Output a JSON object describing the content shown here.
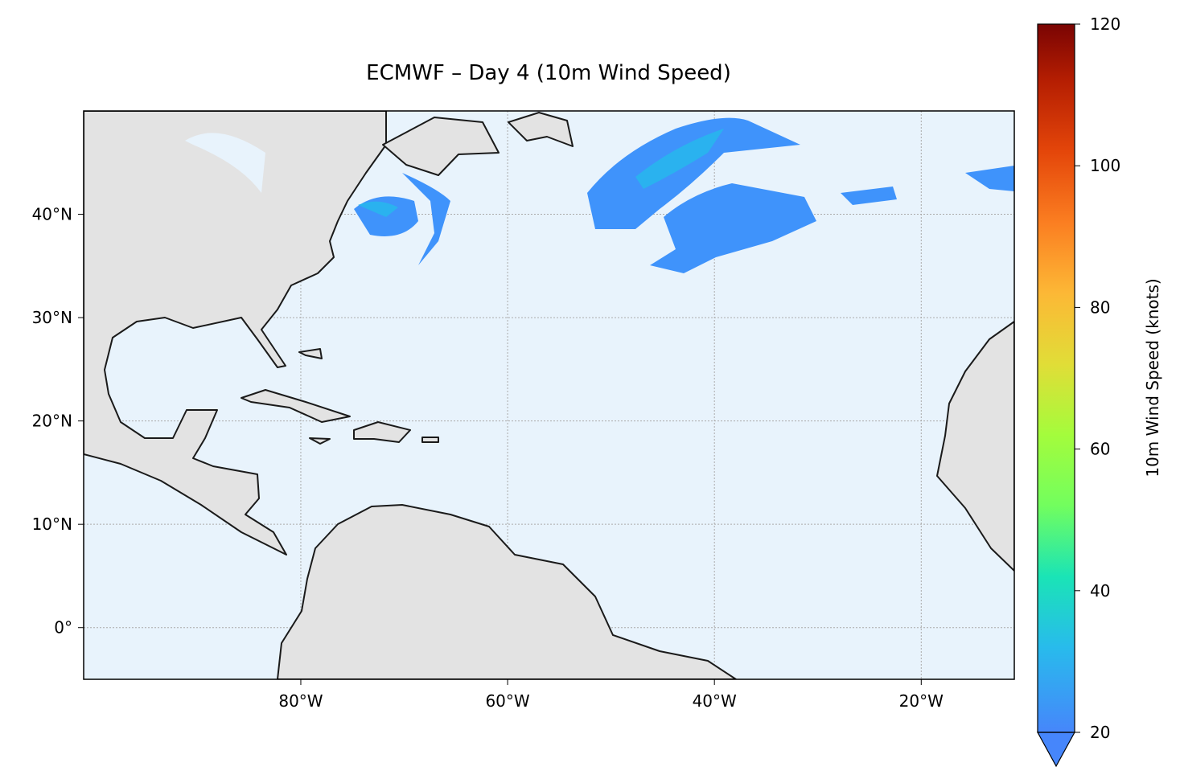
{
  "chart_data": {
    "type": "map",
    "title": "ECMWF – Day 4 (10m Wind Speed)",
    "xlim": [
      -101,
      -11
    ],
    "ylim": [
      -5,
      50
    ],
    "xticks": [
      {
        "value": -80,
        "label": "80°W"
      },
      {
        "value": -60,
        "label": "60°W"
      },
      {
        "value": -40,
        "label": "40°W"
      },
      {
        "value": -20,
        "label": "20°W"
      }
    ],
    "yticks": [
      {
        "value": 0,
        "label": "0°"
      },
      {
        "value": 10,
        "label": "10°N"
      },
      {
        "value": 20,
        "label": "20°N"
      },
      {
        "value": 30,
        "label": "30°N"
      },
      {
        "value": 40,
        "label": "40°N"
      }
    ],
    "grid": true,
    "colorbar": {
      "label": "10m Wind Speed (knots)",
      "lim": [
        20,
        120
      ],
      "ticks": [
        20,
        40,
        60,
        80,
        100,
        120
      ]
    }
  }
}
